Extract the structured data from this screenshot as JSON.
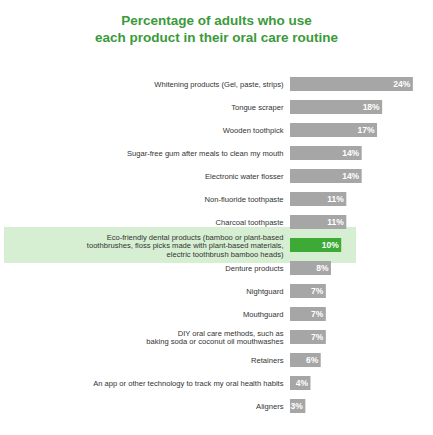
{
  "chart_data": {
    "type": "bar",
    "orientation": "horizontal",
    "title": "Percentage of adults who use\neach product in their oral care routine",
    "categories": [
      "Whitening products (Gel, paste, strips)",
      "Tongue scraper",
      "Wooden toothpick",
      "Sugar-free gum after meals to clean my mouth",
      "Electronic water flosser",
      "Non-fluoride toothpaste",
      "Charcoal toothpaste",
      "Eco-friendly dental products (bamboo or plant-based\ntoothbrushes, floss picks made with plant-based materials,\nelectric toothbrush bamboo heads)",
      "Denture products",
      "Nightguard",
      "Mouthguard",
      "DIY oral care methods, such as\nbaking soda or coconut oil mouthwashes",
      "Retainers",
      "An app or other technology to track my oral health habits",
      "Aligners"
    ],
    "values": [
      24,
      18,
      17,
      14,
      14,
      11,
      11,
      10,
      8,
      7,
      7,
      7,
      6,
      4,
      3
    ],
    "value_labels": [
      "24%",
      "18%",
      "17%",
      "14%",
      "14%",
      "11%",
      "11%",
      "10%",
      "8%",
      "7%",
      "7%",
      "7%",
      "6%",
      "4%",
      "3%"
    ],
    "colors": [
      "#a6a6a6",
      "#a6a6a6",
      "#a6a6a6",
      "#a6a6a6",
      "#a6a6a6",
      "#a6a6a6",
      "#a6a6a6",
      "#3daa35",
      "#a6a6a6",
      "#a6a6a6",
      "#a6a6a6",
      "#a6a6a6",
      "#a6a6a6",
      "#a6a6a6",
      "#a6a6a6"
    ],
    "xlim": [
      0,
      25
    ],
    "data_labels": true,
    "tick_labels": "y",
    "grid": false
  }
}
